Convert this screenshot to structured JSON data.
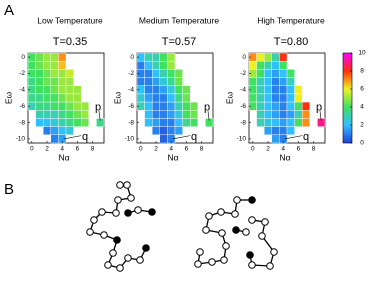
{
  "panel_labels": [
    "A",
    "B"
  ],
  "chart_data": [
    {
      "type": "heatmap",
      "title": "Low Temperature",
      "subtitle": "T=0.35",
      "xlabel": "Nα",
      "ylabel": "Eω",
      "xlim": [
        -0.5,
        9.5
      ],
      "ylim": [
        -10.5,
        0.5
      ],
      "xticks": [
        0,
        2,
        4,
        6,
        8
      ],
      "yticks": [
        0,
        -2,
        -4,
        -6,
        -8,
        -10
      ],
      "annotations": [
        "p",
        "q"
      ],
      "rows": [
        {
          "e": 0,
          "n0": 0,
          "values": [
            4,
            4.5,
            5,
            5,
            7
          ]
        },
        {
          "e": -1,
          "n0": 0,
          "values": [
            4,
            4.5,
            5,
            5,
            6.5
          ]
        },
        {
          "e": -2,
          "n0": 0,
          "values": [
            4,
            4,
            4.5,
            5,
            5,
            5.5
          ]
        },
        {
          "e": -3,
          "n0": 0,
          "values": [
            3.5,
            4,
            4.5,
            4.5,
            5,
            5
          ]
        },
        {
          "e": -4,
          "n0": 0,
          "values": [
            3.5,
            4,
            4,
            4.5,
            5,
            5,
            5
          ]
        },
        {
          "e": -5,
          "n0": 0,
          "values": [
            3.5,
            3.5,
            4,
            4,
            4.5,
            5,
            5
          ]
        },
        {
          "e": -6,
          "n0": 0,
          "values": [
            3,
            3.5,
            3.5,
            4,
            4,
            4.5,
            5,
            5
          ]
        },
        {
          "e": -7,
          "n0": 1,
          "values": [
            3,
            3,
            3,
            3.5,
            4,
            4.5,
            5
          ]
        },
        {
          "e": -8,
          "n0": 1,
          "values": [
            2,
            2,
            2.5,
            3,
            3.5,
            4,
            4.5
          ]
        },
        {
          "e": -8,
          "n0": 9,
          "values": [
            3.5
          ]
        },
        {
          "e": -9,
          "n0": 2,
          "values": [
            1,
            1.5,
            2,
            2.5
          ]
        },
        {
          "e": -10,
          "n0": 3,
          "values": [
            1,
            1.5
          ]
        }
      ]
    },
    {
      "type": "heatmap",
      "title": "Medium Temperature",
      "subtitle": "T=0.57",
      "xlabel": "Nα",
      "ylabel": "Eω",
      "xlim": [
        -0.5,
        9.5
      ],
      "ylim": [
        -10.5,
        0.5
      ],
      "xticks": [
        0,
        2,
        4,
        6,
        8
      ],
      "yticks": [
        0,
        -2,
        -4,
        -6,
        -8,
        -10
      ],
      "annotations": [
        "p",
        "q"
      ],
      "rows": [
        {
          "e": 0,
          "n0": 0,
          "values": [
            2,
            3,
            3,
            4,
            5
          ]
        },
        {
          "e": -1,
          "n0": 0,
          "values": [
            1,
            2,
            3,
            4,
            5
          ]
        },
        {
          "e": -2,
          "n0": 0,
          "values": [
            1,
            1,
            2,
            3,
            4,
            4.5
          ]
        },
        {
          "e": -3,
          "n0": 0,
          "values": [
            1,
            1,
            1.5,
            2.5,
            3.5,
            4.5
          ]
        },
        {
          "e": -4,
          "n0": 0,
          "values": [
            2,
            1,
            1,
            1.5,
            2.5,
            4,
            4.5
          ]
        },
        {
          "e": -5,
          "n0": 0,
          "values": [
            2.5,
            1.5,
            1,
            1,
            2,
            3.5,
            4.5
          ]
        },
        {
          "e": -6,
          "n0": 0,
          "values": [
            3,
            2,
            1,
            1,
            1.5,
            3,
            4,
            4.5
          ]
        },
        {
          "e": -7,
          "n0": 1,
          "values": [
            2,
            1,
            1,
            1.5,
            2.5,
            4,
            4.5
          ]
        },
        {
          "e": -8,
          "n0": 1,
          "values": [
            2,
            1.5,
            1,
            1,
            2,
            3.5,
            4
          ]
        },
        {
          "e": -8,
          "n0": 9,
          "values": [
            4
          ]
        },
        {
          "e": -9,
          "n0": 2,
          "values": [
            1,
            0.5,
            1,
            1.5
          ]
        },
        {
          "e": -10,
          "n0": 3,
          "values": [
            0.5,
            1
          ]
        }
      ]
    },
    {
      "type": "heatmap",
      "title": "High Temperature",
      "subtitle": "T=0.80",
      "xlabel": "Nα",
      "ylabel": "Eω",
      "xlim": [
        -0.5,
        9.5
      ],
      "ylim": [
        -10.5,
        0.5
      ],
      "xticks": [
        0,
        2,
        4,
        6,
        8
      ],
      "yticks": [
        0,
        -2,
        -4,
        -6,
        -8,
        -10
      ],
      "annotations": [
        "p",
        "q"
      ],
      "colorbar": {
        "lim": [
          0,
          10
        ],
        "ticks": [
          0,
          2,
          4,
          6,
          8,
          10
        ]
      },
      "rows": [
        {
          "e": 0,
          "n0": 0,
          "values": [
            7,
            6,
            5,
            3,
            8
          ]
        },
        {
          "e": -1,
          "n0": 0,
          "values": [
            6,
            4,
            3,
            2,
            4
          ]
        },
        {
          "e": -2,
          "n0": 0,
          "values": [
            5,
            4,
            2,
            1.5,
            2,
            4
          ]
        },
        {
          "e": -3,
          "n0": 0,
          "values": [
            4,
            3,
            2,
            1,
            1.5,
            3
          ]
        },
        {
          "e": -4,
          "n0": 0,
          "values": [
            4,
            3,
            2,
            1,
            1,
            2,
            6
          ]
        },
        {
          "e": -5,
          "n0": 0,
          "values": [
            4,
            3,
            2,
            1,
            1,
            2,
            6
          ]
        },
        {
          "e": -6,
          "n0": 0,
          "values": [
            4,
            3,
            2,
            1.5,
            1,
            2,
            4,
            8
          ]
        },
        {
          "e": -7,
          "n0": 1,
          "values": [
            3,
            2,
            1.5,
            1,
            1.5,
            3,
            7
          ]
        },
        {
          "e": -8,
          "n0": 1,
          "values": [
            3,
            2.5,
            2,
            1.5,
            2,
            4,
            7
          ]
        },
        {
          "e": -8,
          "n0": 9,
          "values": [
            9
          ]
        },
        {
          "e": -9,
          "n0": 2,
          "values": [
            1.5,
            1,
            1,
            2
          ]
        },
        {
          "e": -10,
          "n0": 3,
          "values": [
            1.5,
            1
          ]
        }
      ]
    }
  ]
}
